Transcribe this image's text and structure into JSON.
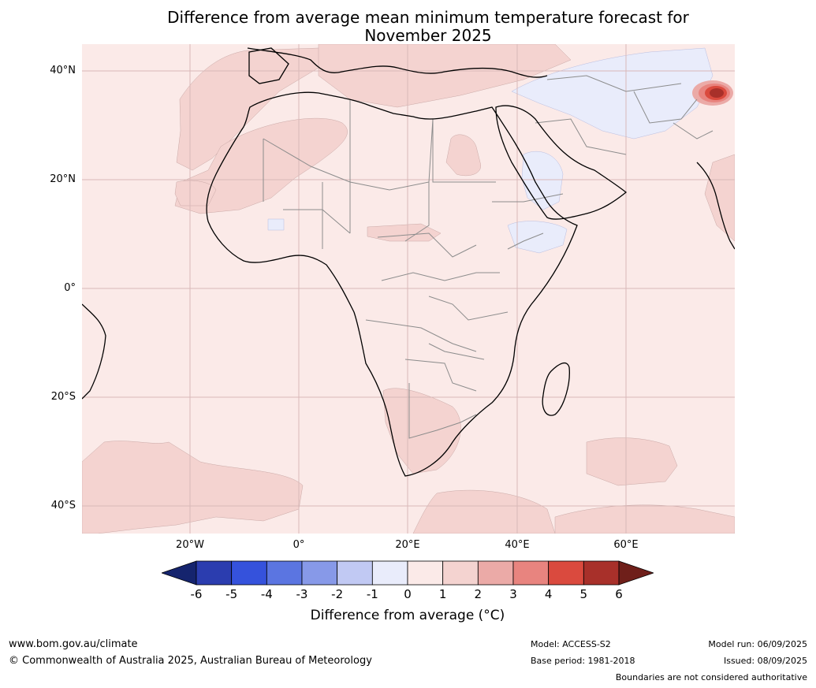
{
  "title": {
    "line1": "Difference from average mean minimum temperature forecast for",
    "line2": "November 2025"
  },
  "axes": {
    "lat_labels": [
      "40°N",
      "20°N",
      "0°",
      "20°S",
      "40°S"
    ],
    "lon_labels": [
      "20°W",
      "0°",
      "20°E",
      "40°E",
      "60°E"
    ]
  },
  "colors": {
    "ocean_land_base": "#fbeae8",
    "anomaly_1_2": "#f4d3d0",
    "anomaly_neg1_0": "#e9ecfb",
    "anomaly_hot": "#a8302a",
    "grid": "#d9b8b8",
    "country_border": "#8c8c8c",
    "coastline": "#000000"
  },
  "colorbar": {
    "ticks": [
      "-6",
      "-5",
      "-4",
      "-3",
      "-2",
      "-1",
      "0",
      "1",
      "2",
      "3",
      "4",
      "5",
      "6"
    ],
    "colors": [
      "#15246e",
      "#2b3daf",
      "#3552dc",
      "#5b75e1",
      "#8799e8",
      "#c1c9f3",
      "#e9ecfb",
      "#fbeae8",
      "#f4d3d0",
      "#ebaaa7",
      "#e8847f",
      "#da4a3e",
      "#a8302a",
      "#6f1f1a"
    ],
    "label": "Difference from average (°C)"
  },
  "footer": {
    "url": "www.bom.gov.au/climate",
    "copyright": "© Commonwealth of Australia 2025, Australian Bureau of Meteorology",
    "model": "Model: ACCESS-S2",
    "base_period": "Base period: 1981-2018",
    "model_run": "Model run: 06/09/2025",
    "issued": "Issued: 08/09/2025",
    "disclaimer": "Boundaries are not considered authoritative"
  }
}
